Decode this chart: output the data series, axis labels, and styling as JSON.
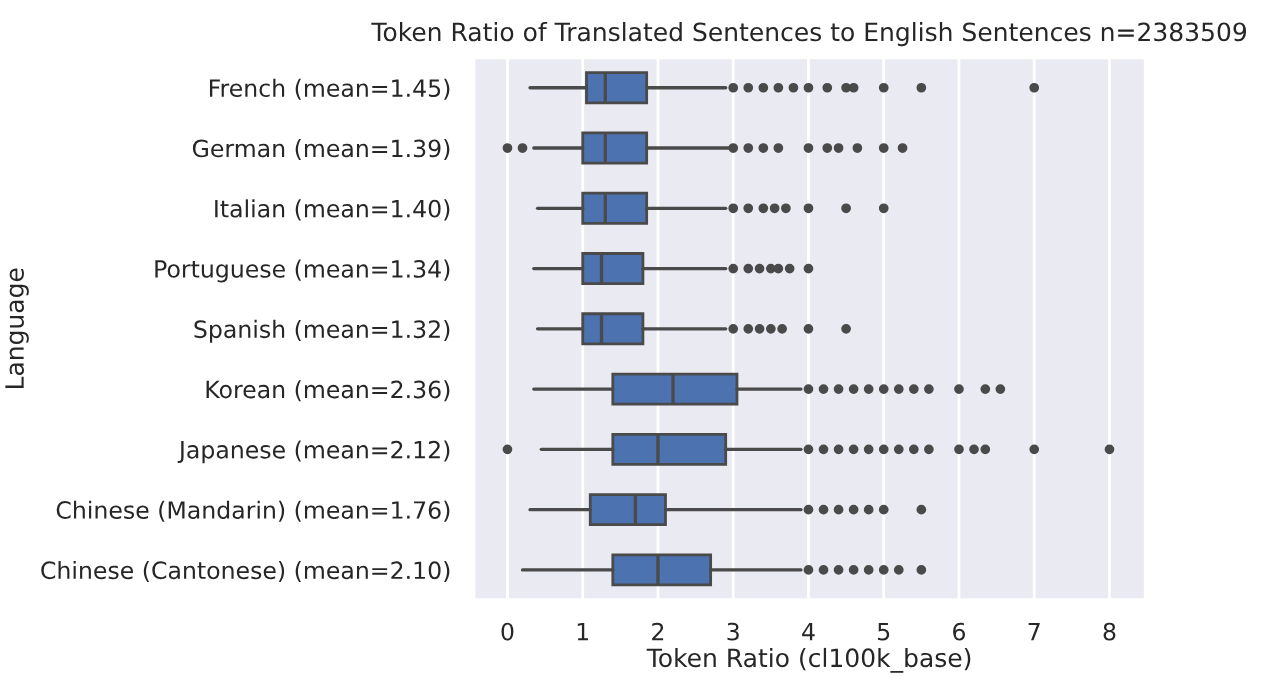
{
  "chart_data": {
    "type": "box",
    "orientation": "horizontal",
    "title": "Token Ratio of Translated Sentences to English Sentences n=2383509",
    "xlabel": "Token Ratio (cl100k_base)",
    "ylabel": "Language",
    "categories": [
      "French (mean=1.45)",
      "German (mean=1.39)",
      "Italian (mean=1.40)",
      "Portuguese (mean=1.34)",
      "Spanish (mean=1.32)",
      "Korean (mean=2.36)",
      "Japanese (mean=2.12)",
      "Chinese (Mandarin) (mean=1.76)",
      "Chinese (Cantonese) (mean=2.10)"
    ],
    "color": "#4c72b0",
    "boxes": [
      {
        "low": 0.3,
        "q1": 1.05,
        "median": 1.3,
        "q3": 1.85,
        "high": 2.9,
        "outliers": [
          3.0,
          3.2,
          3.4,
          3.6,
          3.8,
          4.0,
          4.25,
          4.5,
          4.6,
          5.0,
          5.5,
          7.0
        ]
      },
      {
        "low": 0.35,
        "q1": 1.0,
        "median": 1.3,
        "q3": 1.85,
        "high": 2.95,
        "outliers": [
          0.0,
          0.2,
          3.0,
          3.2,
          3.4,
          3.6,
          4.0,
          4.25,
          4.4,
          4.65,
          5.0,
          5.25
        ]
      },
      {
        "low": 0.4,
        "q1": 1.0,
        "median": 1.3,
        "q3": 1.85,
        "high": 2.9,
        "outliers": [
          3.0,
          3.2,
          3.4,
          3.55,
          3.7,
          4.0,
          4.5,
          5.0
        ]
      },
      {
        "low": 0.35,
        "q1": 1.0,
        "median": 1.25,
        "q3": 1.8,
        "high": 2.9,
        "outliers": [
          3.0,
          3.2,
          3.35,
          3.5,
          3.6,
          3.75,
          4.0
        ]
      },
      {
        "low": 0.4,
        "q1": 1.0,
        "median": 1.25,
        "q3": 1.8,
        "high": 2.9,
        "outliers": [
          3.0,
          3.2,
          3.35,
          3.5,
          3.65,
          4.0,
          4.5
        ]
      },
      {
        "low": 0.35,
        "q1": 1.4,
        "median": 2.2,
        "q3": 3.05,
        "high": 3.9,
        "outliers": [
          4.0,
          4.2,
          4.4,
          4.6,
          4.8,
          5.0,
          5.2,
          5.4,
          5.6,
          6.0,
          6.35,
          6.55
        ]
      },
      {
        "low": 0.45,
        "q1": 1.4,
        "median": 2.0,
        "q3": 2.9,
        "high": 3.9,
        "outliers": [
          0.0,
          4.0,
          4.2,
          4.4,
          4.6,
          4.8,
          5.0,
          5.2,
          5.4,
          5.6,
          6.0,
          6.2,
          6.35,
          7.0,
          8.0
        ]
      },
      {
        "low": 0.3,
        "q1": 1.1,
        "median": 1.7,
        "q3": 2.1,
        "high": 3.9,
        "outliers": [
          4.0,
          4.2,
          4.4,
          4.6,
          4.8,
          5.0,
          5.5
        ]
      },
      {
        "low": 0.2,
        "q1": 1.4,
        "median": 2.0,
        "q3": 2.7,
        "high": 3.9,
        "outliers": [
          4.0,
          4.2,
          4.4,
          4.6,
          4.8,
          5.0,
          5.2,
          5.5
        ]
      }
    ],
    "xlim": [
      -0.45,
      8.48
    ],
    "xticks": [
      0,
      1,
      2,
      3,
      4,
      5,
      6,
      7,
      8
    ],
    "grid": "x"
  }
}
